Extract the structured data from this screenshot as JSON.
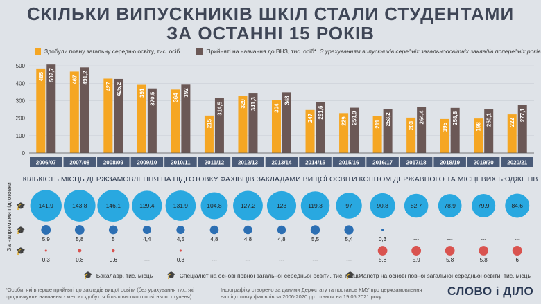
{
  "title_line1": "СКІЛЬКИ ВИПУСКНИКІВ ШКІЛ СТАЛИ СТУДЕНТАМИ",
  "title_line2": "ЗА ОСТАННІ 15 РОКІВ",
  "legend": {
    "series1": "Здобули повну загальну середню освіту, тис. осіб",
    "series2": "Прийняті на навчання до ВНЗ, тис. осіб*",
    "series2_note": "З урахуванням випускників середніх загальноосвітніх закладів попередніх років"
  },
  "colors": {
    "orange": "#f5a623",
    "brown": "#6b5856",
    "blue": "#29a8e0",
    "blue_dark": "#2c6fb3",
    "red": "#d9534f",
    "bg": "#dfe3e8",
    "yearbar": "#4a5b78"
  },
  "chart_data": [
    {
      "type": "bar",
      "categories": [
        "2006/07",
        "2007/08",
        "2008/09",
        "2009/10",
        "2010/11",
        "2011/12",
        "2012/13",
        "2013/14",
        "2014/15",
        "2015/16",
        "2016/17",
        "2017/18",
        "2018/19",
        "2019/20",
        "2020/21"
      ],
      "series": [
        {
          "name": "Здобули повну загальну середню освіту, тис. осіб",
          "values": [
            485,
            467,
            427,
            391,
            364,
            215,
            329,
            304,
            247,
            229,
            211,
            203,
            195,
            198,
            222
          ]
        },
        {
          "name": "Прийняті на навчання до ВНЗ, тис. осіб*",
          "values": [
            "507,7",
            "491,2",
            "425,2",
            "370,5",
            "392",
            "314,5",
            "341,3",
            "348",
            "291,6",
            "259,9",
            "253,2",
            "264,4",
            "258,8",
            "250,1",
            "277,1"
          ],
          "numeric": [
            507.7,
            491.2,
            425.2,
            370.5,
            392,
            314.5,
            341.3,
            348,
            291.6,
            259.9,
            253.2,
            264.4,
            258.8,
            250.1,
            277.1
          ]
        }
      ],
      "yticks": [
        "0",
        "100",
        "200",
        "300",
        "400",
        "500"
      ],
      "ylim": [
        0,
        560
      ]
    },
    {
      "type": "scatter",
      "title": "КІЛЬКІСТЬ МІСЦЬ ДЕРЖЗАМОВЛЕННЯ НА ПІДГОТОВКУ ФАХІВЦІВ ЗАКЛАДАМИ ВИЩОЇ ОСВІТИ КОШТОМ ДЕРЖАВНОГО ТА МІСЦЕВИХ БЮДЖЕТІВ",
      "ylabel": "За напрямами підготовки",
      "categories": [
        "2006/07",
        "2007/08",
        "2008/09",
        "2009/10",
        "2010/11",
        "2011/12",
        "2012/13",
        "2013/14",
        "2014/15",
        "2015/16",
        "2016/17",
        "2017/18",
        "2018/19",
        "2019/20",
        "2020/21"
      ],
      "series": [
        {
          "name": "Бакалавр, тис. місць",
          "labels": [
            "141,9",
            "143,8",
            "146,1",
            "129,4",
            "131,9",
            "104,8",
            "127,2",
            "123",
            "119,3",
            "97",
            "90,8",
            "82,7",
            "78,9",
            "79,9",
            "84,6"
          ],
          "values": [
            141.9,
            143.8,
            146.1,
            129.4,
            131.9,
            104.8,
            127.2,
            123,
            119.3,
            97,
            90.8,
            82.7,
            78.9,
            79.9,
            84.6
          ]
        },
        {
          "name": "Спеціаліст на основі повної загальної середньої освіти, тис. місць",
          "labels": [
            "5,9",
            "5,8",
            "5",
            "4,4",
            "4,5",
            "4,8",
            "4,8",
            "4,8",
            "5,5",
            "5,4",
            "0,3",
            "---",
            "---",
            "---",
            "---"
          ],
          "values": [
            5.9,
            5.8,
            5,
            4.4,
            4.5,
            4.8,
            4.8,
            4.8,
            5.5,
            5.4,
            0.3,
            null,
            null,
            null,
            null
          ]
        },
        {
          "name": "Магістр на основі повної загальної середньої освіти, тис. місць",
          "labels": [
            "0,3",
            "0,8",
            "0,6",
            "---",
            "0,3",
            "---",
            "---",
            "---",
            "---",
            "---",
            "5,8",
            "5,9",
            "5,8",
            "5,8",
            "6"
          ],
          "values": [
            0.3,
            0.8,
            0.6,
            null,
            0.3,
            null,
            null,
            null,
            null,
            null,
            5.8,
            5.9,
            5.8,
            5.8,
            6
          ]
        }
      ]
    }
  ],
  "footnote_left": "*Особи, які вперше прийняті до закладів вищої освіти (без урахування тих, які продовжують навчання з метою здобуття більш високого освітнього ступеня)",
  "footnote_right": "Інфографіку створено за даними Держстату та постанов КМУ про держзамовлення на підготовку фахівців за 2006-2020 рр. станом на 19.05.2021 року",
  "logo": "СЛОВО і ДІЛО"
}
